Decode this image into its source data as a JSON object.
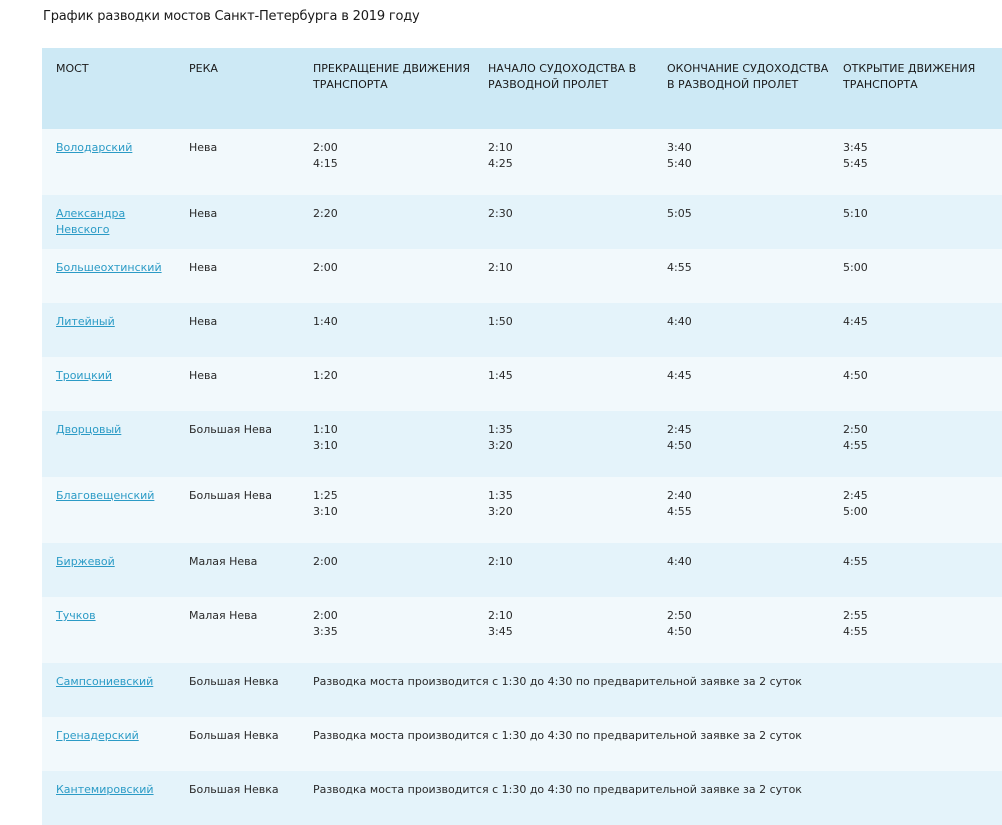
{
  "title": "График разводки мостов Санкт-Петербурга в 2019 году",
  "headers": [
    "МОСТ",
    "РЕКА",
    "ПРЕКРАЩЕНИЕ ДВИЖЕНИЯ ТРАНСПОРТА",
    "НАЧАЛО СУДОХОДСТВА В РАЗВОДНОЙ ПРОЛЕТ",
    "ОКОНЧАНИЕ СУДОХОДСТВА В РАЗВОДНОЙ ПРОЛЕТ",
    "ОТКРЫТИЕ ДВИЖЕНИЯ ТРАНСПОРТА"
  ],
  "rows": [
    {
      "bridge": "Володарский",
      "river": "Нева",
      "stop": [
        "2:00",
        "4:15"
      ],
      "nav_start": [
        "2:10",
        "4:25"
      ],
      "nav_end": [
        "3:40",
        "5:40"
      ],
      "open": [
        "3:45",
        "5:45"
      ]
    },
    {
      "bridge": "Александра Невского",
      "river": "Нева",
      "stop": [
        "2:20"
      ],
      "nav_start": [
        "2:30"
      ],
      "nav_end": [
        "5:05"
      ],
      "open": [
        "5:10"
      ]
    },
    {
      "bridge": "Большеохтинский",
      "river": "Нева",
      "stop": [
        "2:00"
      ],
      "nav_start": [
        "2:10"
      ],
      "nav_end": [
        "4:55"
      ],
      "open": [
        "5:00"
      ]
    },
    {
      "bridge": "Литейный",
      "river": "Нева",
      "stop": [
        "1:40"
      ],
      "nav_start": [
        "1:50"
      ],
      "nav_end": [
        "4:40"
      ],
      "open": [
        "4:45"
      ]
    },
    {
      "bridge": "Троицкий",
      "river": "Нева",
      "stop": [
        "1:20"
      ],
      "nav_start": [
        "1:45"
      ],
      "nav_end": [
        "4:45"
      ],
      "open": [
        "4:50"
      ]
    },
    {
      "bridge": "Дворцовый",
      "river": "Большая Нева",
      "stop": [
        "1:10",
        "3:10"
      ],
      "nav_start": [
        "1:35",
        "3:20"
      ],
      "nav_end": [
        "2:45",
        "4:50"
      ],
      "open": [
        "2:50",
        "4:55"
      ]
    },
    {
      "bridge": "Благовещенский",
      "river": "Большая Нева",
      "stop": [
        "1:25",
        "3:10"
      ],
      "nav_start": [
        "1:35",
        "3:20"
      ],
      "nav_end": [
        "2:40",
        "4:55"
      ],
      "open": [
        "2:45",
        "5:00"
      ]
    },
    {
      "bridge": "Биржевой",
      "river": "Малая Нева",
      "stop": [
        "2:00"
      ],
      "nav_start": [
        "2:10"
      ],
      "nav_end": [
        "4:40"
      ],
      "open": [
        "4:55"
      ]
    },
    {
      "bridge": "Тучков",
      "river": "Малая Нева",
      "stop": [
        "2:00",
        "3:35"
      ],
      "nav_start": [
        "2:10",
        "3:45"
      ],
      "nav_end": [
        "2:50",
        "4:50"
      ],
      "open": [
        "2:55",
        "4:55"
      ]
    },
    {
      "bridge": "Сампсониевский",
      "river": "Большая Невка",
      "note": "Разводка моста производится с 1:30 до 4:30 по предварительной заявке за 2 суток"
    },
    {
      "bridge": "Гренадерский",
      "river": "Большая Невка",
      "note": "Разводка моста производится с 1:30 до 4:30 по предварительной заявке за 2 суток"
    },
    {
      "bridge": "Кантемировский",
      "river": "Большая Невка",
      "note": "Разводка моста производится с 1:30 до 4:30 по предварительной заявке за 2 суток"
    }
  ]
}
